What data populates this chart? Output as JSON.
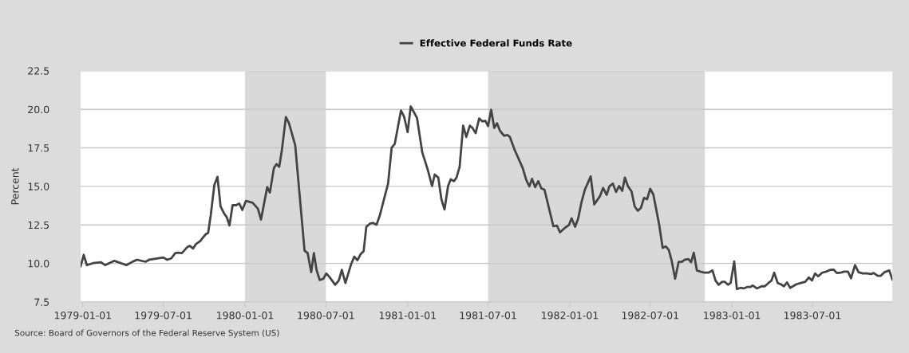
{
  "chart_data": {
    "type": "line",
    "ylabel": "Percent",
    "legend": "top",
    "grid": "y",
    "line_style": "solid",
    "marker": "none",
    "xlim": [
      "1978-12-27",
      "1983-12-28"
    ],
    "ylim": [
      7.5,
      22.5
    ],
    "yticks": [
      7.5,
      {
        "value": 10,
        "label": "10.0"
      },
      12.5,
      {
        "value": 15,
        "label": "15.0"
      },
      17.5,
      {
        "value": 20,
        "label": "20.0"
      },
      22.5
    ],
    "xticks": [
      "1979-01-01",
      "1979-07-01",
      "1980-01-01",
      "1980-07-01",
      "1981-01-01",
      "1981-07-01",
      "1982-01-01",
      "1982-07-01",
      "1983-01-01",
      "1983-07-01"
    ],
    "bands": [
      {
        "axis": "x",
        "from": "1980-01-01",
        "to": "1980-07-01",
        "color": "#d9d9d9"
      },
      {
        "axis": "x",
        "from": "1981-07-01",
        "to": "1982-11-01",
        "color": "#d9d9d9"
      }
    ],
    "annotations": [
      "Source: Board of Governors of the Federal Reserve System (US)"
    ],
    "series": [
      {
        "name": "Effective Federal Funds Rate",
        "color": "#444444",
        "x": [
          "1978-12-27",
          "1979-01-03",
          "1979-01-10",
          "1979-01-24",
          "1979-02-11",
          "1979-02-20",
          "1979-03-13",
          "1979-04-09",
          "1979-04-24",
          "1979-05-03",
          "1979-05-22",
          "1979-05-31",
          "1979-07-01",
          "1979-07-10",
          "1979-07-19",
          "1979-07-28",
          "1979-08-03",
          "1979-08-12",
          "1979-08-24",
          "1979-08-30",
          "1979-09-06",
          "1979-09-13",
          "1979-09-22",
          "1979-10-04",
          "1979-10-10",
          "1979-10-16",
          "1979-10-24",
          "1979-10-31",
          "1979-11-07",
          "1979-11-15",
          "1979-11-21",
          "1979-11-27",
          "1979-12-04",
          "1979-12-12",
          "1979-12-19",
          "1979-12-26",
          "1980-01-03",
          "1980-01-18",
          "1980-01-30",
          "1980-02-06",
          "1980-02-20",
          "1980-02-26",
          "1980-03-06",
          "1980-03-12",
          "1980-03-18",
          "1980-03-24",
          "1980-04-02",
          "1980-04-09",
          "1980-04-23",
          "1980-05-14",
          "1980-05-21",
          "1980-05-29",
          "1980-06-04",
          "1980-06-10",
          "1980-06-17",
          "1980-06-25",
          "1980-07-02",
          "1980-07-09",
          "1980-07-22",
          "1980-07-30",
          "1980-08-06",
          "1980-08-14",
          "1980-08-27",
          "1980-09-03",
          "1980-09-10",
          "1980-09-17",
          "1980-09-24",
          "1980-09-30",
          "1980-10-08",
          "1980-10-15",
          "1980-10-23",
          "1980-10-30",
          "1980-11-18",
          "1980-11-26",
          "1980-12-03",
          "1980-12-10",
          "1980-12-17",
          "1980-12-24",
          "1981-01-01",
          "1981-01-08",
          "1981-01-22",
          "1981-02-03",
          "1981-02-15",
          "1981-02-25",
          "1981-03-03",
          "1981-03-11",
          "1981-03-18",
          "1981-03-25",
          "1981-04-02",
          "1981-04-08",
          "1981-04-15",
          "1981-04-21",
          "1981-04-28",
          "1981-05-06",
          "1981-05-13",
          "1981-05-21",
          "1981-05-27",
          "1981-06-03",
          "1981-06-11",
          "1981-06-18",
          "1981-06-25",
          "1981-07-01",
          "1981-07-08",
          "1981-07-15",
          "1981-07-21",
          "1981-07-28",
          "1981-08-06",
          "1981-08-14",
          "1981-08-19",
          "1981-08-30",
          "1981-09-17",
          "1981-09-25",
          "1981-10-02",
          "1981-10-08",
          "1981-10-15",
          "1981-10-22",
          "1981-10-29",
          "1981-11-05",
          "1981-11-25",
          "1981-12-03",
          "1981-12-10",
          "1981-12-22",
          "1981-12-30",
          "1982-01-05",
          "1982-01-13",
          "1982-01-20",
          "1982-01-27",
          "1982-02-04",
          "1982-02-17",
          "1982-02-25",
          "1982-03-10",
          "1982-03-17",
          "1982-03-25",
          "1982-03-31",
          "1982-04-08",
          "1982-04-15",
          "1982-04-22",
          "1982-04-29",
          "1982-05-05",
          "1982-05-12",
          "1982-05-20",
          "1982-05-27",
          "1982-06-03",
          "1982-06-10",
          "1982-06-17",
          "1982-06-24",
          "1982-07-01",
          "1982-07-08",
          "1982-07-21",
          "1982-07-29",
          "1982-08-05",
          "1982-08-12",
          "1982-08-18",
          "1982-08-26",
          "1982-09-03",
          "1982-09-10",
          "1982-09-17",
          "1982-09-25",
          "1982-10-01",
          "1982-10-07",
          "1982-10-14",
          "1982-10-22",
          "1982-10-31",
          "1982-11-09",
          "1982-11-18",
          "1982-11-25",
          "1982-12-02",
          "1982-12-10",
          "1982-12-16",
          "1982-12-23",
          "1982-12-29",
          "1983-01-06",
          "1983-01-12",
          "1983-01-20",
          "1983-01-27",
          "1983-02-04",
          "1983-02-11",
          "1983-02-17",
          "1983-02-26",
          "1983-03-09",
          "1983-03-16",
          "1983-03-24",
          "1983-03-31",
          "1983-04-06",
          "1983-04-14",
          "1983-04-21",
          "1983-04-28",
          "1983-05-05",
          "1983-05-12",
          "1983-05-26",
          "1983-06-05",
          "1983-06-15",
          "1983-06-23",
          "1983-06-30",
          "1983-07-07",
          "1983-07-14",
          "1983-07-23",
          "1983-08-01",
          "1983-08-10",
          "1983-08-18",
          "1983-08-25",
          "1983-09-03",
          "1983-09-10",
          "1983-09-19",
          "1983-09-26",
          "1983-10-05",
          "1983-10-13",
          "1983-10-22",
          "1983-11-01",
          "1983-11-10",
          "1983-11-16",
          "1983-11-25",
          "1983-12-02",
          "1983-12-10",
          "1983-12-21",
          "1983-12-28"
        ],
        "values": [
          9.82,
          10.56,
          9.89,
          10.02,
          10.08,
          9.89,
          10.17,
          9.89,
          10.13,
          10.24,
          10.11,
          10.25,
          10.39,
          10.24,
          10.33,
          10.67,
          10.7,
          10.67,
          11.06,
          11.14,
          10.97,
          11.27,
          11.45,
          11.88,
          11.98,
          13.16,
          15.1,
          15.62,
          13.7,
          13.24,
          13.0,
          12.46,
          13.78,
          13.78,
          13.89,
          13.47,
          14.06,
          13.94,
          13.55,
          12.85,
          14.95,
          14.6,
          16.19,
          16.45,
          16.27,
          17.36,
          19.5,
          19.1,
          17.67,
          10.83,
          10.67,
          9.43,
          10.67,
          9.58,
          8.93,
          9.0,
          9.35,
          9.12,
          8.62,
          8.89,
          9.58,
          8.73,
          9.97,
          10.44,
          10.21,
          10.6,
          10.8,
          12.38,
          12.58,
          12.63,
          12.51,
          13.08,
          15.18,
          17.51,
          17.75,
          18.83,
          19.92,
          19.53,
          18.52,
          20.19,
          19.45,
          17.2,
          16.11,
          15.02,
          15.77,
          15.57,
          14.17,
          13.5,
          15.02,
          15.46,
          15.34,
          15.57,
          16.27,
          18.94,
          18.21,
          18.94,
          18.79,
          18.45,
          19.41,
          19.22,
          19.25,
          18.91,
          19.97,
          18.79,
          19.1,
          18.6,
          18.29,
          18.33,
          18.21,
          17.36,
          16.19,
          15.41,
          15.0,
          15.49,
          14.95,
          15.34,
          14.87,
          14.79,
          12.41,
          12.46,
          12.02,
          12.33,
          12.49,
          12.93,
          12.38,
          12.93,
          13.94,
          14.79,
          15.65,
          13.83,
          14.37,
          14.9,
          14.45,
          15.0,
          15.18,
          14.64,
          15.02,
          14.71,
          15.57,
          15.0,
          14.67,
          13.7,
          13.42,
          13.6,
          14.25,
          14.17,
          14.84,
          14.48,
          12.54,
          11.01,
          11.11,
          10.86,
          10.21,
          9.01,
          10.1,
          10.1,
          10.24,
          10.28,
          10.08,
          10.7,
          9.54,
          9.47,
          9.4,
          9.4,
          9.55,
          8.89,
          8.62,
          8.81,
          8.81,
          8.62,
          8.73,
          10.13,
          8.34,
          8.42,
          8.38,
          8.47,
          8.47,
          8.57,
          8.38,
          8.52,
          8.52,
          8.73,
          8.89,
          9.4,
          8.73,
          8.65,
          8.52,
          8.77,
          8.42,
          8.65,
          8.73,
          8.81,
          9.09,
          8.89,
          9.35,
          9.17,
          9.4,
          9.47,
          9.58,
          9.6,
          9.38,
          9.4,
          9.47,
          9.47,
          9.04,
          9.89,
          9.43,
          9.35,
          9.35,
          9.31,
          9.38,
          9.2,
          9.2,
          9.43,
          9.55,
          8.96
        ]
      }
    ]
  }
}
